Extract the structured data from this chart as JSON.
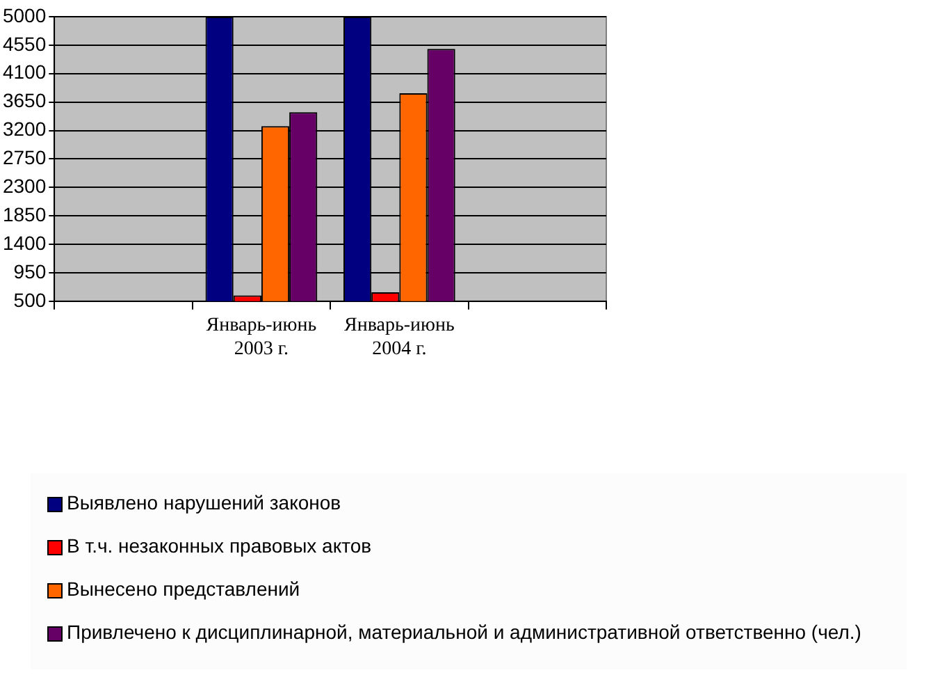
{
  "chart_data": {
    "type": "bar",
    "categories": [
      null,
      "Январь-июнь 2003 г.",
      "Январь-июнь 2004 г.",
      null
    ],
    "series": [
      {
        "name": "Выявлено нарушений законов",
        "color": "#000080",
        "values": [
          null,
          5000,
          5000,
          null
        ]
      },
      {
        "name": "В т.ч. незаконных правовых актов",
        "color": "#ff0000",
        "values": [
          null,
          590,
          640,
          null
        ]
      },
      {
        "name": "Вынесено представлений",
        "color": "#ff6600",
        "values": [
          null,
          3270,
          3790,
          null
        ]
      },
      {
        "name": "Привлечено к дисциплинарной, материальной и административной ответственно (чел.)",
        "color": "#660066",
        "values": [
          null,
          3490,
          4490,
          null
        ]
      }
    ],
    "ylim": [
      500,
      5000
    ],
    "yticks": [
      500,
      950,
      1400,
      1850,
      2300,
      2750,
      3200,
      3650,
      4100,
      4550,
      5000
    ],
    "grid": "y",
    "legend": "bottom"
  }
}
